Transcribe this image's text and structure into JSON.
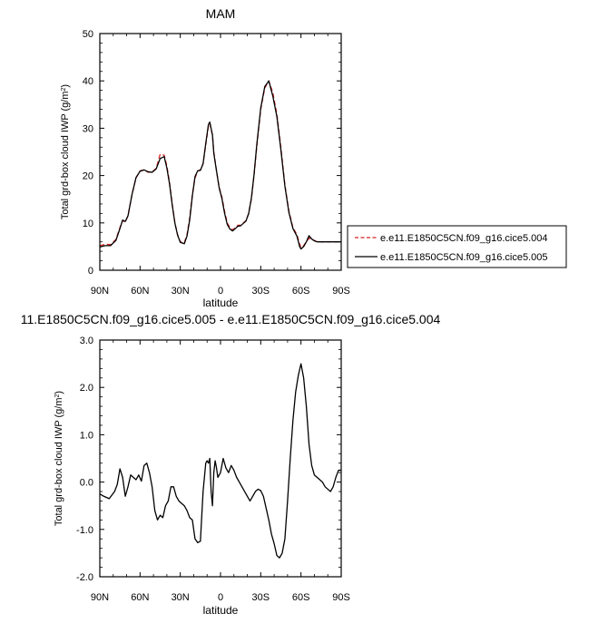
{
  "chart_data": [
    {
      "type": "line",
      "title": "MAM",
      "xlabel": "latitude",
      "ylabel": "Total grd-box cloud IWP (g/m²)",
      "xlim": [
        90,
        -90
      ],
      "ylim": [
        0,
        50
      ],
      "yticks": [
        "0",
        "10",
        "20",
        "30",
        "40",
        "50"
      ],
      "xticks": [
        {
          "value": 90,
          "label": "90N"
        },
        {
          "value": 60,
          "label": "60N"
        },
        {
          "value": 30,
          "label": "30N"
        },
        {
          "value": 0,
          "label": "0"
        },
        {
          "value": -30,
          "label": "30S"
        },
        {
          "value": -60,
          "label": "60S"
        },
        {
          "value": -90,
          "label": "90S"
        }
      ],
      "legend_position": "right",
      "series": [
        {
          "name": "e.e11.E1850C5CN.f09_g16.cice5.004",
          "color": "#d62020",
          "dash": "dashed",
          "x": [
            90,
            86,
            82,
            78,
            75,
            73,
            71,
            69,
            66,
            63,
            60,
            57,
            54,
            51,
            48,
            45,
            42,
            40,
            38,
            36,
            34,
            32,
            30,
            27,
            25,
            23,
            21,
            19,
            17,
            15,
            13,
            11,
            9,
            8,
            6,
            5,
            3,
            1,
            -1,
            -3,
            -5,
            -7,
            -9,
            -11,
            -13,
            -15,
            -17,
            -19,
            -21,
            -23,
            -25,
            -27,
            -30,
            -33,
            -36,
            -39,
            -42,
            -45,
            -48,
            -51,
            -54,
            -57,
            -59,
            -60,
            -62,
            -64,
            -66,
            -68,
            -70,
            -72,
            -74,
            -76,
            -78,
            -80,
            -82,
            -84,
            -86,
            -88,
            -90
          ],
          "y": [
            5.2,
            5.5,
            5.4,
            6.5,
            9.0,
            10.5,
            10.2,
            11.5,
            16.0,
            19.5,
            21.0,
            21.2,
            20.7,
            20.8,
            21.5,
            24.5,
            24.3,
            22.0,
            18.5,
            14.0,
            10.0,
            7.5,
            6.0,
            5.8,
            7.5,
            11.0,
            16.0,
            19.5,
            21.0,
            21.2,
            22.5,
            26.5,
            30.5,
            31.0,
            28.5,
            25.0,
            21.0,
            17.5,
            15.5,
            12.5,
            10.0,
            9.0,
            8.5,
            9.0,
            9.5,
            9.5,
            10.0,
            10.5,
            12.0,
            15.0,
            20.0,
            26.0,
            34.0,
            38.5,
            40.0,
            37.5,
            33.0,
            26.0,
            18.0,
            12.5,
            9.0,
            7.5,
            5.5,
            4.8,
            5.2,
            6.0,
            6.8,
            6.5,
            6.3,
            6.0,
            6.0,
            6.0,
            6.0,
            6.0,
            6.0,
            6.0,
            6.0,
            6.0,
            6.0
          ]
        },
        {
          "name": "e.e11.E1850C5CN.f09_g16.cice5.005",
          "color": "#000000",
          "dash": "solid",
          "x": [
            90,
            86,
            82,
            78,
            75,
            73,
            71,
            69,
            66,
            63,
            60,
            57,
            54,
            51,
            48,
            45,
            42,
            40,
            38,
            36,
            34,
            32,
            30,
            27,
            25,
            23,
            21,
            19,
            17,
            15,
            13,
            11,
            9,
            8,
            6,
            5,
            3,
            1,
            -1,
            -3,
            -5,
            -7,
            -9,
            -11,
            -13,
            -15,
            -17,
            -19,
            -21,
            -23,
            -25,
            -27,
            -30,
            -33,
            -36,
            -39,
            -42,
            -45,
            -48,
            -51,
            -54,
            -57,
            -59,
            -60,
            -62,
            -64,
            -66,
            -68,
            -70,
            -72,
            -74,
            -76,
            -78,
            -80,
            -82,
            -84,
            -86,
            -88,
            -90
          ],
          "y": [
            4.9,
            5.2,
            5.2,
            6.3,
            8.8,
            10.6,
            10.3,
            11.5,
            16.0,
            19.6,
            20.9,
            21.2,
            20.8,
            20.7,
            21.4,
            23.6,
            24.0,
            21.6,
            18.2,
            13.8,
            9.9,
            7.4,
            5.9,
            5.6,
            7.2,
            10.6,
            15.7,
            19.8,
            21.0,
            21.1,
            22.5,
            26.8,
            30.8,
            31.3,
            28.6,
            24.7,
            21.0,
            17.4,
            15.2,
            12.1,
            9.7,
            8.7,
            8.3,
            8.8,
            9.3,
            9.4,
            9.9,
            10.4,
            12.0,
            15.2,
            20.2,
            26.4,
            34.3,
            38.8,
            40.0,
            36.8,
            32.5,
            25.5,
            17.8,
            12.2,
            8.8,
            7.2,
            5.0,
            4.5,
            5.0,
            6.0,
            7.3,
            6.6,
            6.2,
            6.0,
            6.0,
            6.0,
            6.0,
            6.0,
            6.0,
            6.0,
            6.0,
            6.0,
            6.0
          ]
        }
      ]
    },
    {
      "type": "line",
      "title": "11.E1850C5CN.f09_g16.cice5.005 - e.e11.E1850C5CN.f09_g16.cice5.004",
      "xlabel": "latitude",
      "ylabel": "Total grd-box cloud IWP (g/m²)",
      "xlim": [
        90,
        -90
      ],
      "ylim": [
        -2.0,
        3.0
      ],
      "yticks": [
        "-2.0",
        "-1.0",
        "0.0",
        "1.0",
        "2.0",
        "3.0"
      ],
      "xticks": [
        {
          "value": 90,
          "label": "90N"
        },
        {
          "value": 60,
          "label": "60N"
        },
        {
          "value": 30,
          "label": "30N"
        },
        {
          "value": 0,
          "label": "0"
        },
        {
          "value": -30,
          "label": "30S"
        },
        {
          "value": -60,
          "label": "60S"
        },
        {
          "value": -90,
          "label": "90S"
        }
      ],
      "series": [
        {
          "color": "#000000",
          "dash": "solid",
          "x": [
            90,
            87,
            83,
            79,
            77,
            75,
            73,
            71,
            69,
            67,
            65,
            63,
            61,
            59,
            57,
            55,
            53,
            51,
            49,
            47,
            45,
            43,
            41,
            39,
            37,
            35,
            33,
            31,
            29,
            27,
            25,
            23,
            21,
            19,
            17,
            15,
            13,
            11,
            10,
            9,
            8,
            7,
            6,
            5,
            4,
            3,
            2,
            0,
            -2,
            -4,
            -6,
            -8,
            -10,
            -12,
            -14,
            -16,
            -18,
            -20,
            -22,
            -24,
            -26,
            -28,
            -30,
            -32,
            -34,
            -36,
            -38,
            -40,
            -42,
            -44,
            -46,
            -48,
            -50,
            -52,
            -54,
            -56,
            -58,
            -60,
            -62,
            -63,
            -64,
            -65,
            -66,
            -68,
            -70,
            -72,
            -74,
            -76,
            -78,
            -80,
            -82,
            -84,
            -86,
            -88,
            -90
          ],
          "y": [
            -0.25,
            -0.3,
            -0.35,
            -0.2,
            -0.05,
            0.28,
            0.1,
            -0.3,
            -0.1,
            0.15,
            0.1,
            0.05,
            0.15,
            0.02,
            0.35,
            0.4,
            0.2,
            -0.1,
            -0.6,
            -0.8,
            -0.7,
            -0.75,
            -0.5,
            -0.4,
            -0.1,
            -0.1,
            -0.3,
            -0.4,
            -0.45,
            -0.5,
            -0.6,
            -0.75,
            -0.8,
            -1.2,
            -1.28,
            -1.25,
            -0.2,
            0.4,
            0.45,
            0.4,
            0.5,
            -0.2,
            -0.5,
            0.2,
            0.45,
            0.3,
            0.1,
            0.2,
            0.5,
            0.3,
            0.2,
            0.35,
            0.25,
            0.1,
            0.0,
            -0.1,
            -0.2,
            -0.3,
            -0.4,
            -0.3,
            -0.2,
            -0.15,
            -0.18,
            -0.3,
            -0.55,
            -0.8,
            -1.1,
            -1.3,
            -1.55,
            -1.6,
            -1.5,
            -1.2,
            -0.4,
            0.5,
            1.3,
            1.9,
            2.25,
            2.5,
            2.2,
            1.9,
            1.6,
            1.2,
            0.8,
            0.35,
            0.15,
            0.1,
            0.05,
            0.0,
            -0.1,
            -0.15,
            -0.2,
            -0.1,
            0.1,
            0.25,
            0.25
          ]
        }
      ]
    }
  ]
}
